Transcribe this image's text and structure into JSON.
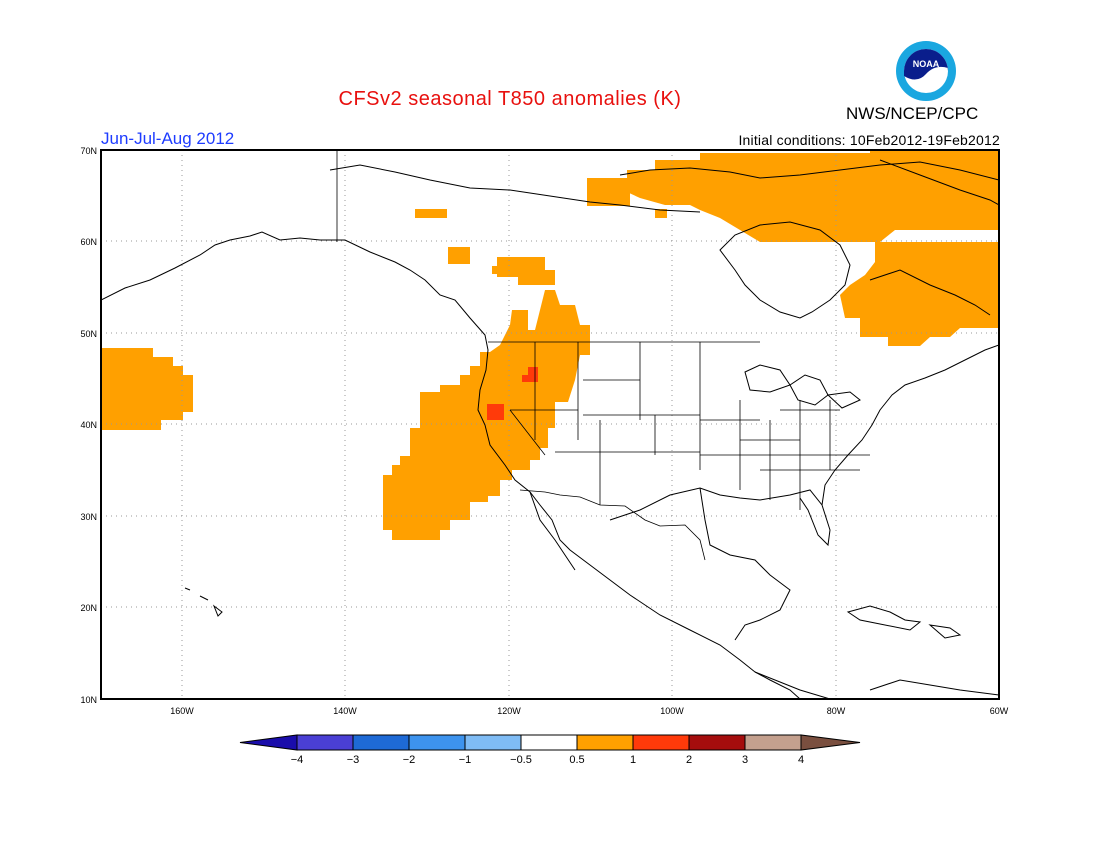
{
  "header": {
    "title": "CFSv2 seasonal T850 anomalies (K)",
    "credit": "NWS/NCEP/CPC",
    "season": "Jun-Jul-Aug 2012",
    "initial_conditions": "Initial conditions: 10Feb2012-19Feb2012",
    "logo_text": "NOAA"
  },
  "map": {
    "region": "North America / NE Pacific",
    "lon_range": [
      -172,
      -60
    ],
    "lat_range": [
      10,
      70
    ],
    "lat_ticks": [
      "70N",
      "60N",
      "50N",
      "40N",
      "30N",
      "20N",
      "10N"
    ],
    "lon_ticks": [
      "160W",
      "140W",
      "120W",
      "100W",
      "80W",
      "60W"
    ],
    "gridlines": "dotted"
  },
  "colorbar": {
    "labels": [
      "-4",
      "-3",
      "-2",
      "-1",
      "-0.5",
      "0.5",
      "1",
      "2",
      "3",
      "4"
    ],
    "colors": [
      "#1a0dab",
      "#4a3fd4",
      "#1e6ad6",
      "#3d93ee",
      "#7fbcf5",
      "#ffffff",
      "#ffa000",
      "#ff3a0a",
      "#a50d0d",
      "#c4a08e",
      "#7a4f3f"
    ]
  },
  "anomaly_regions": [
    {
      "name": "northeast-pacific",
      "level": "0.5-1"
    },
    {
      "name": "us-west-coast",
      "level": "0.5-1"
    },
    {
      "name": "pacific-northwest",
      "level": "0.5-1"
    },
    {
      "name": "eastern-canada",
      "level": "0.5-1"
    },
    {
      "name": "northern-canada",
      "level": "0.5-1"
    },
    {
      "name": "idaho-hotspot",
      "level": "1-2"
    },
    {
      "name": "oregon-hotspot",
      "level": "1-2"
    }
  ]
}
